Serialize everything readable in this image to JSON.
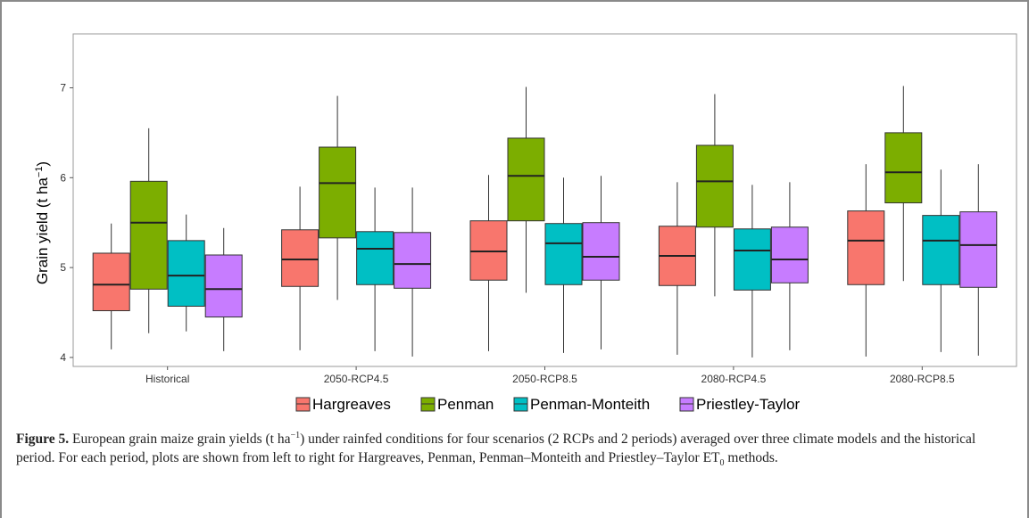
{
  "chart_data": {
    "type": "boxplot",
    "ylabel": "Grain yield (t ha",
    "ylabel_unit_sup": "−1",
    "ylabel_close": ")",
    "ylim": [
      3.9,
      7.6
    ],
    "yticks": [
      4,
      5,
      6,
      7
    ],
    "ytick_labels": [
      "4",
      "5",
      "6",
      "7"
    ],
    "grid": false,
    "legend_position": "bottom",
    "categories": [
      "Historical",
      "2050-RCP4.5",
      "2050-RCP8.5",
      "2080-RCP4.5",
      "2080-RCP8.5"
    ],
    "series": [
      {
        "name": "Hargreaves",
        "color": "#f8766d",
        "boxes": [
          {
            "min": 4.09,
            "q1": 4.52,
            "median": 4.81,
            "q3": 5.16,
            "max": 5.49
          },
          {
            "min": 4.08,
            "q1": 4.79,
            "median": 5.09,
            "q3": 5.42,
            "max": 5.9
          },
          {
            "min": 4.07,
            "q1": 4.86,
            "median": 5.18,
            "q3": 5.52,
            "max": 6.03
          },
          {
            "min": 4.03,
            "q1": 4.8,
            "median": 5.13,
            "q3": 5.46,
            "max": 5.95
          },
          {
            "min": 4.01,
            "q1": 4.81,
            "median": 5.3,
            "q3": 5.63,
            "max": 6.15
          }
        ]
      },
      {
        "name": "Penman",
        "color": "#7cae00",
        "boxes": [
          {
            "min": 4.27,
            "q1": 4.76,
            "median": 5.5,
            "q3": 5.96,
            "max": 6.55
          },
          {
            "min": 4.64,
            "q1": 5.33,
            "median": 5.94,
            "q3": 6.34,
            "max": 6.91
          },
          {
            "min": 4.72,
            "q1": 5.52,
            "median": 6.02,
            "q3": 6.44,
            "max": 7.01
          },
          {
            "min": 4.68,
            "q1": 5.45,
            "median": 5.96,
            "q3": 6.36,
            "max": 6.93
          },
          {
            "min": 4.85,
            "q1": 5.72,
            "median": 6.06,
            "q3": 6.5,
            "max": 7.02
          }
        ]
      },
      {
        "name": "Penman-Monteith",
        "color": "#00bfc4",
        "boxes": [
          {
            "min": 4.29,
            "q1": 4.57,
            "median": 4.91,
            "q3": 5.3,
            "max": 5.59
          },
          {
            "min": 4.07,
            "q1": 4.81,
            "median": 5.21,
            "q3": 5.4,
            "max": 5.89
          },
          {
            "min": 4.05,
            "q1": 4.81,
            "median": 5.27,
            "q3": 5.49,
            "max": 6.0
          },
          {
            "min": 4.0,
            "q1": 4.75,
            "median": 5.19,
            "q3": 5.43,
            "max": 5.92
          },
          {
            "min": 4.06,
            "q1": 4.81,
            "median": 5.3,
            "q3": 5.58,
            "max": 6.09
          }
        ]
      },
      {
        "name": "Priestley-Taylor",
        "color": "#c77cff",
        "boxes": [
          {
            "min": 4.07,
            "q1": 4.45,
            "median": 4.76,
            "q3": 5.14,
            "max": 5.44
          },
          {
            "min": 4.01,
            "q1": 4.77,
            "median": 5.04,
            "q3": 5.39,
            "max": 5.89
          },
          {
            "min": 4.09,
            "q1": 4.86,
            "median": 5.12,
            "q3": 5.5,
            "max": 6.02
          },
          {
            "min": 4.08,
            "q1": 4.83,
            "median": 5.09,
            "q3": 5.45,
            "max": 5.95
          },
          {
            "min": 4.02,
            "q1": 4.78,
            "median": 5.25,
            "q3": 5.62,
            "max": 6.15
          }
        ]
      }
    ]
  },
  "caption": {
    "label": "Figure 5.",
    "text_1": " European grain maize grain yields (t ha",
    "sup_1": "−1",
    "text_2": ") under rainfed conditions for four scenarios (2 RCPs and 2 periods) averaged over three climate models and the historical period. For each period, plots are shown from left to right for Hargreaves, Penman, Penman–Monteith and Priestley–Taylor ET",
    "sub_1": "0",
    "text_3": " methods."
  }
}
